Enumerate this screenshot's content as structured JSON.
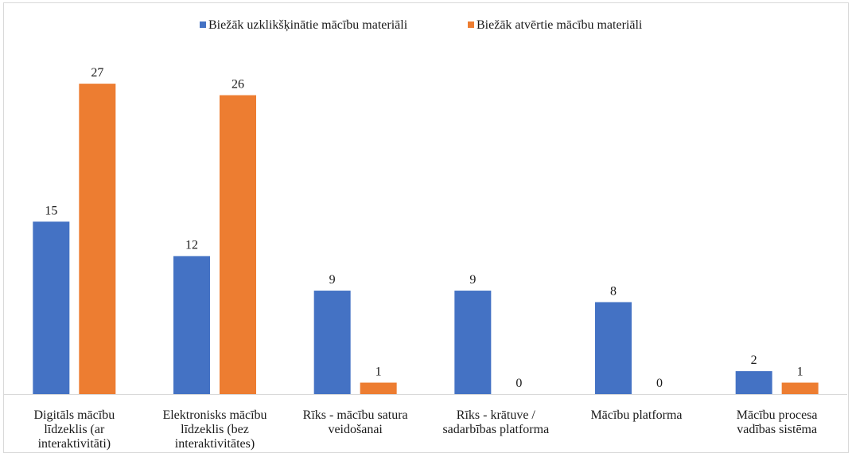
{
  "chart_data": {
    "type": "bar",
    "categories": [
      [
        "Digitāls mācību",
        "līdzeklis (ar",
        "interaktivitāti)"
      ],
      [
        "Elektronisks mācību",
        "līdzeklis (bez",
        "interaktivitātes)"
      ],
      [
        "Rīks - mācību satura",
        "veidošanai"
      ],
      [
        "Rīks - krātuve /",
        "sadarbības platforma"
      ],
      [
        "Mācību platforma"
      ],
      [
        "Mācību procesa",
        "vadības sistēma"
      ]
    ],
    "series": [
      {
        "name": "Biežāk uzklikšķinātie mācību materiāli",
        "color": "#4472c4",
        "values": [
          15,
          12,
          9,
          9,
          8,
          2
        ]
      },
      {
        "name": "Biežāk atvērtie mācību materiāli",
        "color": "#ed7d31",
        "values": [
          27,
          26,
          1,
          0,
          0,
          1
        ]
      }
    ],
    "ylim": [
      0,
      30
    ],
    "legend_position": "top",
    "grid": false,
    "data_labels": true
  }
}
